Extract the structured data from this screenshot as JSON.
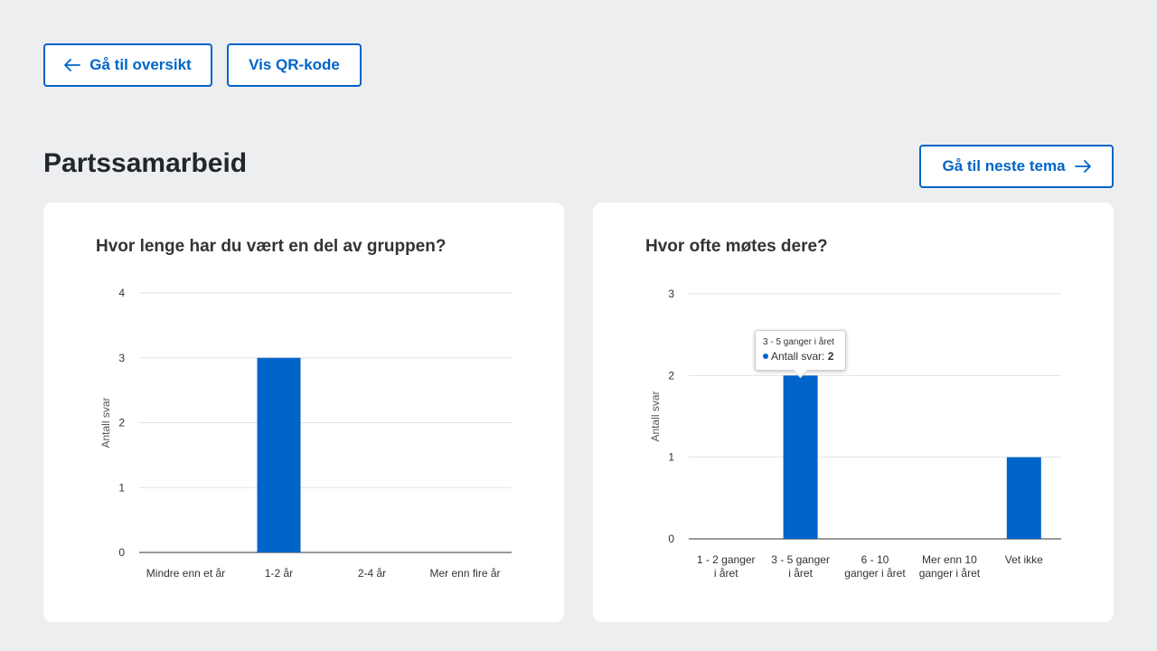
{
  "toolbar": {
    "back_label": "Gå til oversikt",
    "qr_label": "Vis QR-kode",
    "next_label": "Gå til neste tema"
  },
  "page": {
    "title": "Partssamarbeid"
  },
  "colors": {
    "accent": "#0064c8",
    "background": "#edeef0"
  },
  "icons": {
    "back": "arrow-left-icon",
    "next": "arrow-right-icon"
  },
  "chart_data": [
    {
      "type": "bar",
      "title": "Hvor lenge har du vært en del av gruppen?",
      "xlabel": "",
      "ylabel": "Antall svar",
      "categories": [
        "Mindre enn et år",
        "1-2 år",
        "2-4 år",
        "Mer enn fire år"
      ],
      "values": [
        0,
        3,
        0,
        0
      ],
      "ylim": [
        0,
        4
      ],
      "yticks": [
        "0",
        "1",
        "2",
        "3",
        "4"
      ],
      "grid": true
    },
    {
      "type": "bar",
      "title": "Hvor ofte møtes dere?",
      "xlabel": "",
      "ylabel": "Antall svar",
      "categories": [
        [
          "1 - 2 ganger",
          "i året"
        ],
        [
          "3 - 5 ganger",
          "i året"
        ],
        [
          "6 - 10",
          "ganger i året"
        ],
        [
          "Mer enn 10",
          "ganger i året"
        ],
        [
          "Vet ikke"
        ]
      ],
      "values": [
        0,
        2,
        0,
        0,
        1
      ],
      "ylim": [
        0,
        3
      ],
      "yticks": [
        "0",
        "1",
        "2",
        "3"
      ],
      "grid": true,
      "tooltip": {
        "category": "3 - 5 ganger i året",
        "series": "Antall svar",
        "value": "2"
      }
    }
  ]
}
